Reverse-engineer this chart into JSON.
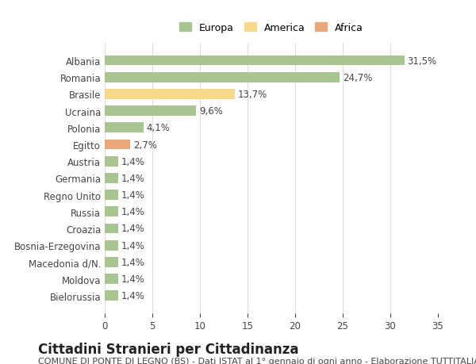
{
  "categories": [
    "Albania",
    "Romania",
    "Brasile",
    "Ucraina",
    "Polonia",
    "Egitto",
    "Austria",
    "Germania",
    "Regno Unito",
    "Russia",
    "Croazia",
    "Bosnia-Erzegovina",
    "Macedonia d/N.",
    "Moldova",
    "Bielorussia"
  ],
  "values": [
    31.5,
    24.7,
    13.7,
    9.6,
    4.1,
    2.7,
    1.4,
    1.4,
    1.4,
    1.4,
    1.4,
    1.4,
    1.4,
    1.4,
    1.4
  ],
  "labels": [
    "31,5%",
    "24,7%",
    "13,7%",
    "9,6%",
    "4,1%",
    "2,7%",
    "1,4%",
    "1,4%",
    "1,4%",
    "1,4%",
    "1,4%",
    "1,4%",
    "1,4%",
    "1,4%",
    "1,4%"
  ],
  "colors": [
    "#a8c490",
    "#a8c490",
    "#f5d88a",
    "#a8c490",
    "#a8c490",
    "#e8a87c",
    "#a8c490",
    "#a8c490",
    "#a8c490",
    "#a8c490",
    "#a8c490",
    "#a8c490",
    "#a8c490",
    "#a8c490",
    "#a8c490"
  ],
  "legend_items": [
    {
      "label": "Europa",
      "color": "#a8c490"
    },
    {
      "label": "America",
      "color": "#f5d88a"
    },
    {
      "label": "Africa",
      "color": "#e8a87c"
    }
  ],
  "xlim": [
    0,
    35
  ],
  "xticks": [
    0,
    5,
    10,
    15,
    20,
    25,
    30,
    35
  ],
  "title": "Cittadini Stranieri per Cittadinanza",
  "subtitle": "COMUNE DI PONTE DI LEGNO (BS) - Dati ISTAT al 1° gennaio di ogni anno - Elaborazione TUTTITALIA.IT",
  "background_color": "#ffffff",
  "grid_color": "#dddddd",
  "bar_height": 0.6,
  "title_fontsize": 12,
  "subtitle_fontsize": 8,
  "tick_fontsize": 8.5,
  "value_label_fontsize": 8.5,
  "legend_fontsize": 9
}
